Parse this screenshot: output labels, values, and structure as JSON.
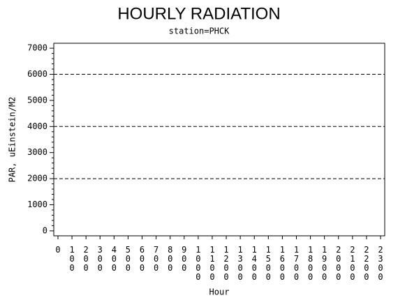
{
  "chart_data": {
    "type": "line",
    "title": "HOURLY RADIATION",
    "subtitle": "station=PHCK",
    "x_label": "Hour",
    "y_label": "PAR, uEinstein/M2",
    "categories": [
      "0",
      "100",
      "200",
      "300",
      "400",
      "500",
      "600",
      "700",
      "800",
      "900",
      "1000",
      "1100",
      "1200",
      "1300",
      "1400",
      "1500",
      "1600",
      "1700",
      "1800",
      "1900",
      "2000",
      "2100",
      "2200",
      "2300"
    ],
    "series": [],
    "ylim": [
      -190,
      7190
    ],
    "yticks": [
      0,
      1000,
      2000,
      3000,
      4000,
      5000,
      6000,
      7000
    ],
    "reference_lines": [
      2000,
      4000,
      6000
    ]
  }
}
